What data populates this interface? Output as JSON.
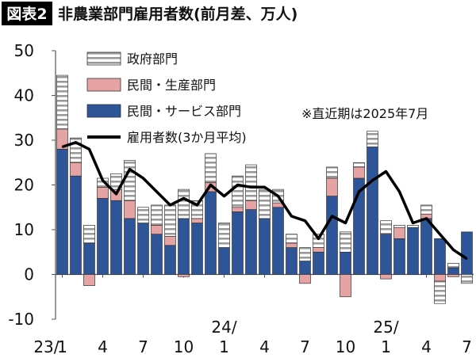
{
  "chart_data": {
    "type": "bar",
    "badge": "図表2",
    "title": "非農業部門雇用者数(前月差、万人)",
    "note": "※直近期は2025年7月",
    "legend": [
      {
        "key": "gov",
        "label": "政府部門"
      },
      {
        "key": "goods",
        "label": "民間・生産部門"
      },
      {
        "key": "services",
        "label": "民間・サービス部門"
      },
      {
        "key": "avg",
        "label": "雇用者数(3か月平均)"
      }
    ],
    "colors": {
      "services": "#2e5597",
      "goods": "#e6a3a3",
      "gov": "#ffffff",
      "gov_stripe": "#9a9a9a",
      "line": "#000000",
      "axis": "#555555"
    },
    "y_axis": {
      "ylim": [
        -10,
        50
      ],
      "ticks": [
        "50",
        "40",
        "30",
        "20",
        "10",
        "0",
        "-10"
      ]
    },
    "x_labels": [
      {
        "i": 0,
        "text": "23/",
        "row": 2
      },
      {
        "i": 0,
        "text": "1",
        "row": 1
      },
      {
        "i": 3,
        "text": "4",
        "row": 1
      },
      {
        "i": 6,
        "text": "7",
        "row": 1
      },
      {
        "i": 9,
        "text": "10",
        "row": 1
      },
      {
        "i": 12,
        "text": "24/",
        "row": 0
      },
      {
        "i": 12,
        "text": "1",
        "row": 1
      },
      {
        "i": 15,
        "text": "4",
        "row": 1
      },
      {
        "i": 18,
        "text": "7",
        "row": 1
      },
      {
        "i": 21,
        "text": "10",
        "row": 1
      },
      {
        "i": 24,
        "text": "25/",
        "row": 0
      },
      {
        "i": 24,
        "text": "1",
        "row": 1
      },
      {
        "i": 27,
        "text": "4",
        "row": 1
      },
      {
        "i": 30,
        "text": "7",
        "row": 1
      }
    ],
    "categories": [
      "2023-01",
      "2023-02",
      "2023-03",
      "2023-04",
      "2023-05",
      "2023-06",
      "2023-07",
      "2023-08",
      "2023-09",
      "2023-10",
      "2023-11",
      "2023-12",
      "2024-01",
      "2024-02",
      "2024-03",
      "2024-04",
      "2024-05",
      "2024-06",
      "2024-07",
      "2024-08",
      "2024-09",
      "2024-10",
      "2024-11",
      "2024-12",
      "2025-01",
      "2025-02",
      "2025-03",
      "2025-04",
      "2025-05",
      "2025-06",
      "2025-07"
    ],
    "series": [
      {
        "key": "services",
        "name": "民間・サービス部門",
        "values": [
          28,
          22,
          7,
          17,
          16.5,
          12.5,
          11.5,
          9,
          6.5,
          12.5,
          11.5,
          18.5,
          6,
          14,
          14.5,
          12.5,
          15,
          6,
          3,
          5,
          17.5,
          5,
          21.5,
          28.5,
          9,
          8,
          10.5,
          12.5,
          8,
          1.5,
          9.5
        ]
      },
      {
        "key": "goods",
        "name": "民間・生産部門",
        "values": [
          4.5,
          3,
          -2.5,
          2.5,
          2.5,
          4,
          0,
          2,
          2,
          -0.5,
          1,
          2,
          0,
          1,
          2,
          0,
          1,
          1,
          -2,
          1,
          4,
          -5,
          2.5,
          0,
          -1,
          2.5,
          0,
          1,
          -1.5,
          -0.5,
          0
        ]
      },
      {
        "key": "gov",
        "name": "政府部門",
        "values": [
          12,
          5.5,
          4,
          2,
          3.5,
          9,
          3.5,
          4.5,
          7,
          6.5,
          4,
          6.5,
          5.5,
          7,
          8,
          6.5,
          3,
          2,
          3,
          3,
          2.5,
          4.5,
          1,
          3.5,
          3,
          0.5,
          0.5,
          2,
          -5,
          1,
          -2
        ]
      },
      {
        "key": "avg",
        "name": "雇用者数(3か月平均)",
        "values": [
          28.5,
          29.5,
          28,
          21,
          18,
          23.5,
          21.5,
          18.5,
          15.5,
          17,
          15.5,
          20,
          17.5,
          20,
          19.5,
          19.5,
          17.5,
          13,
          12,
          8,
          13,
          11.5,
          18.5,
          21,
          23,
          18.5,
          11.5,
          12.5,
          9,
          5.5,
          3.5
        ]
      }
    ]
  }
}
